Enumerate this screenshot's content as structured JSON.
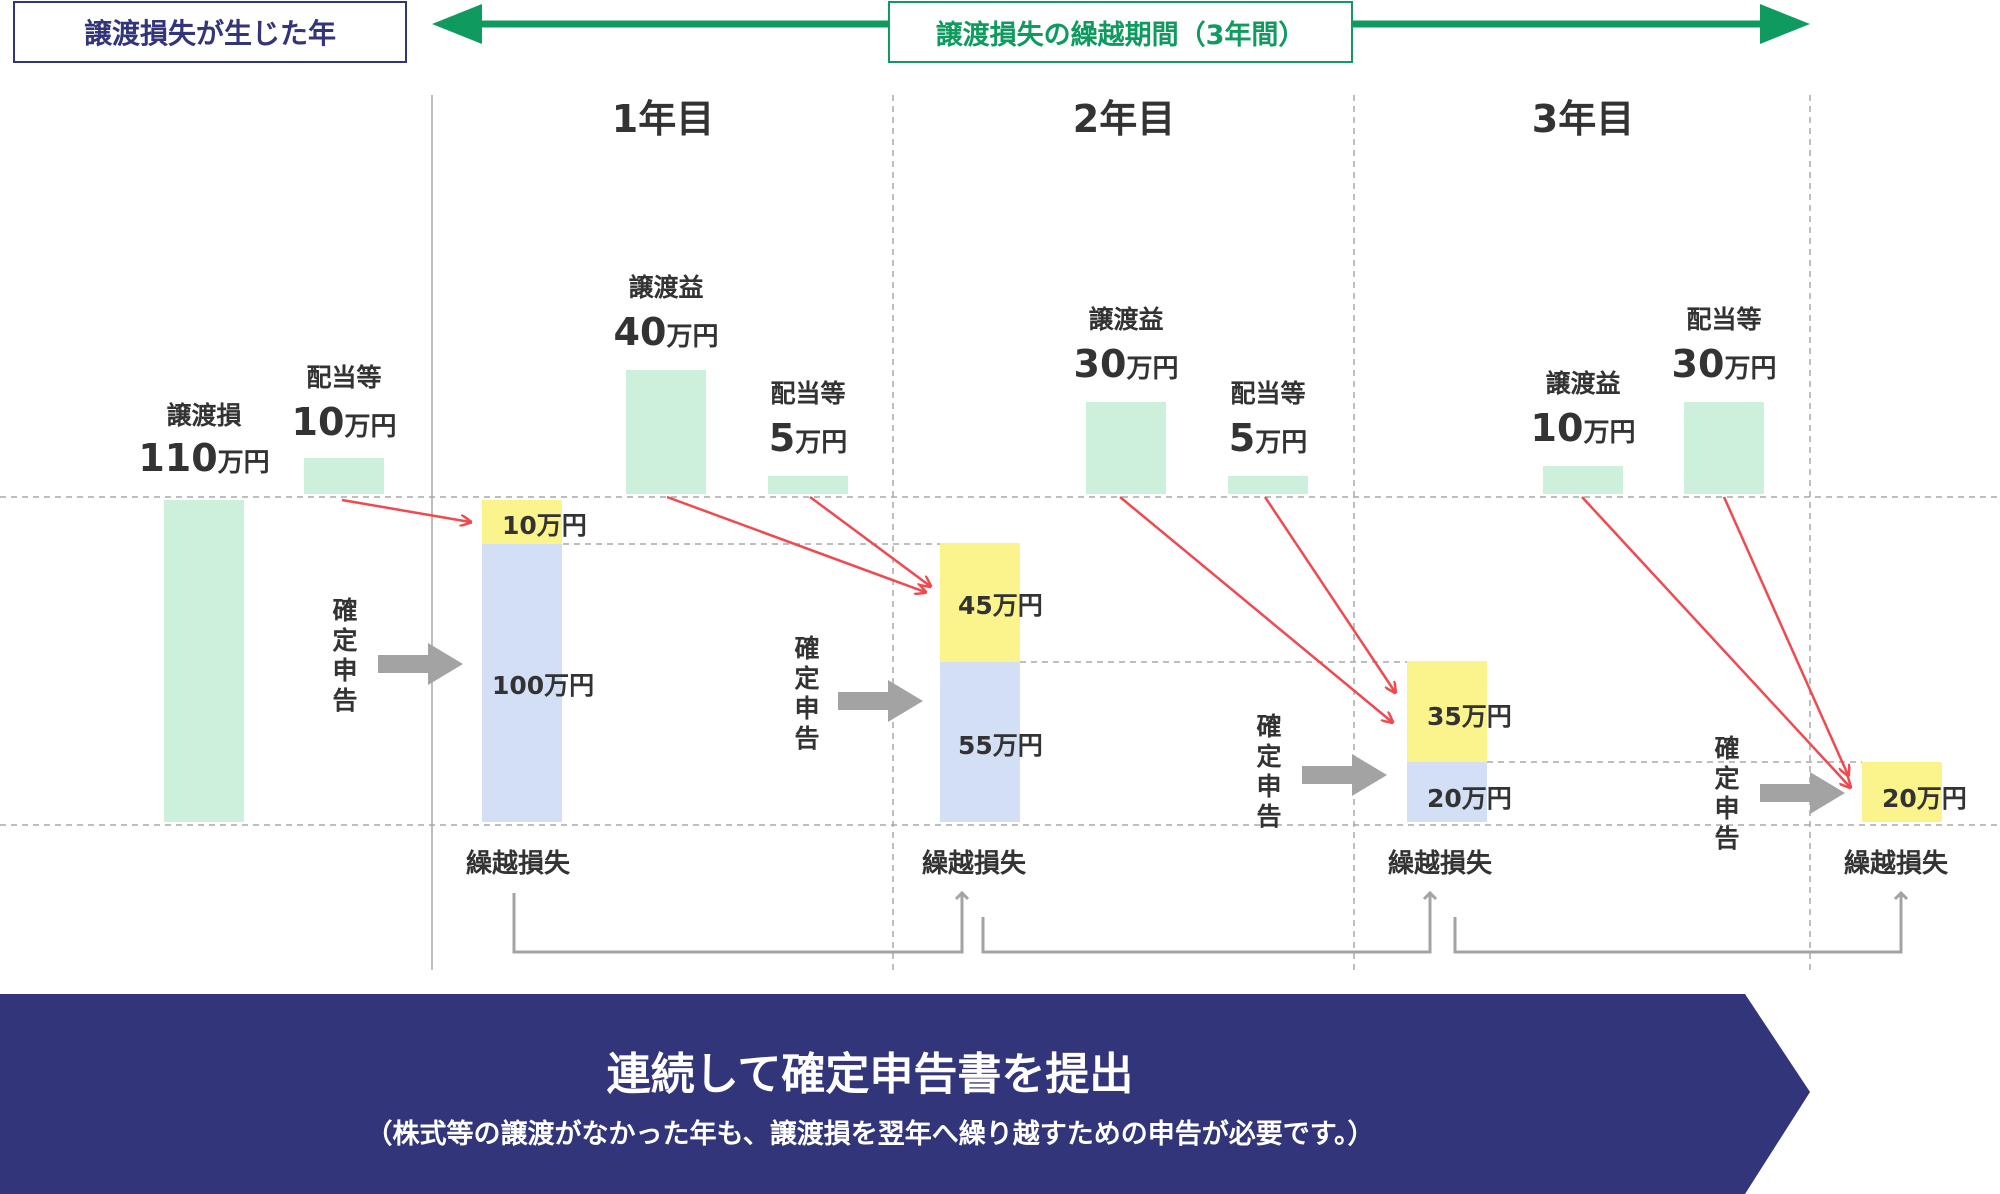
{
  "header": {
    "loss_year_label": "譲渡損失が生じた年",
    "carryover_period_label": "譲渡損失の繰越期間（3年間）"
  },
  "years": [
    "1年目",
    "2年目",
    "3年目"
  ],
  "loss_year": {
    "loss_caption": "譲渡損",
    "loss_amount": "110",
    "dividend_caption": "配当等",
    "dividend_amount": "10",
    "filing_label": "確定申告"
  },
  "year1": {
    "gain_caption": "譲渡益",
    "gain_amount": "40",
    "dividend_caption": "配当等",
    "dividend_amount": "5",
    "offset_label": "10万円",
    "remaining_label": "100万円",
    "carry_label": "繰越損失",
    "filing_label": "確定申告"
  },
  "year2": {
    "gain_caption": "譲渡益",
    "gain_amount": "30",
    "dividend_caption": "配当等",
    "dividend_amount": "5",
    "offset_label": "45万円",
    "remaining_label": "55万円",
    "carry_label": "繰越損失",
    "filing_label": "確定申告"
  },
  "year3": {
    "gain_caption": "譲渡益",
    "gain_amount": "10",
    "dividend_caption": "配当等",
    "dividend_amount": "30",
    "offset_label": "35万円",
    "remaining_label": "20万円",
    "carry_label": "繰越損失",
    "filing_label": "確定申告"
  },
  "after": {
    "offset_label": "20万円",
    "carry_label": "繰越損失"
  },
  "unit": "万円",
  "banner": {
    "title": "連続して確定申告書を提出",
    "note": "（株式等の譲渡がなかった年も、譲渡損を翌年へ繰り越すための申告が必要です。）"
  },
  "colors": {
    "navy": "#33357a",
    "green": "#0f9b5f",
    "bar_green": "#cdf0dd",
    "bar_blue": "#d3dff5",
    "bar_yellow": "#fbf38c",
    "arrow_red": "#f0494f",
    "arrow_gray": "#a3a3a3"
  }
}
